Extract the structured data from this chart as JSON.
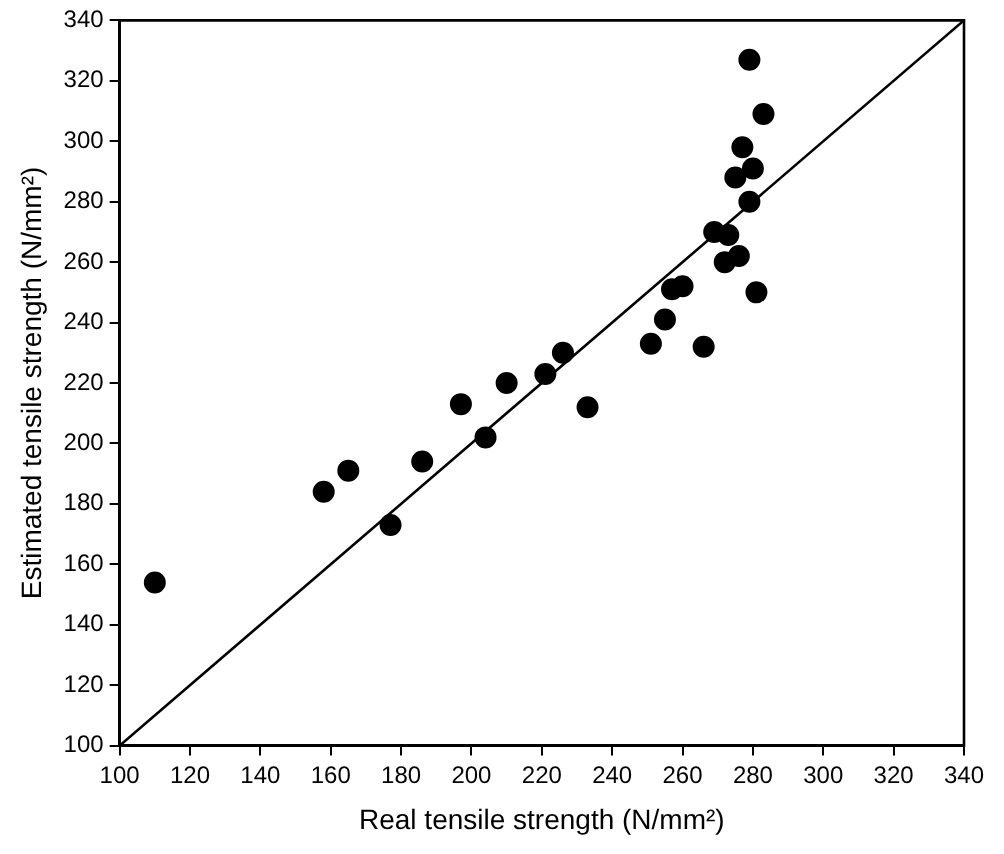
{
  "chart_data": {
    "type": "scatter",
    "xlabel": "Real tensile strength (N/mm²)",
    "ylabel": "Estimated tensile strength (N/mm²)",
    "xlim": [
      100,
      340
    ],
    "ylim": [
      100,
      340
    ],
    "xticks": [
      100,
      120,
      140,
      160,
      180,
      200,
      220,
      240,
      260,
      280,
      300,
      320,
      340
    ],
    "yticks": [
      100,
      120,
      140,
      160,
      180,
      200,
      220,
      240,
      260,
      280,
      300,
      320,
      340
    ],
    "grid": false,
    "legend": false,
    "marker": "circle",
    "series": [
      {
        "color": "#000000",
        "x": [
          110,
          158,
          165,
          177,
          186,
          197,
          204,
          210,
          221,
          226,
          233,
          251,
          255,
          257,
          260,
          266,
          269,
          272,
          273,
          275,
          276,
          277,
          279,
          280,
          279,
          281,
          283
        ],
        "values": [
          154,
          184,
          191,
          173,
          194,
          213,
          202,
          220,
          223,
          230,
          212,
          233,
          241,
          251,
          252,
          232,
          270,
          260,
          269,
          288,
          262,
          298,
          280,
          291,
          327,
          250,
          309
        ]
      },
      {
        "type": "line",
        "color": "#000000",
        "line_style": "solid",
        "marker": "none",
        "x": [
          100,
          340
        ],
        "values": [
          100,
          340
        ]
      }
    ]
  }
}
